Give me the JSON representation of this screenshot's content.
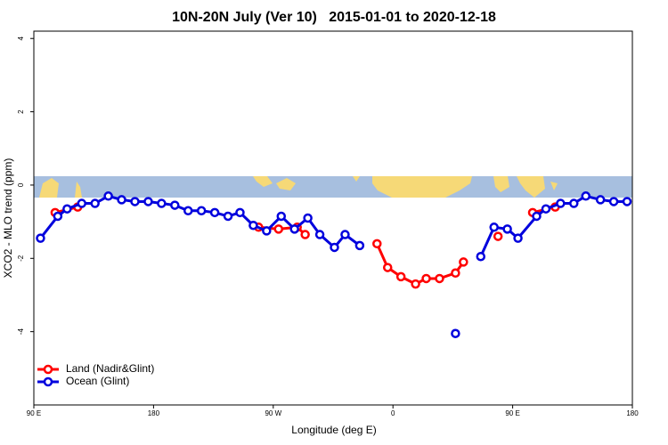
{
  "chart_data": {
    "type": "line",
    "title": "10N-20N July (Ver 10)   2015-01-01 to 2020-12-18",
    "x_label": "Longitude (deg E)",
    "y_label": "XCO2 - MLO trend (ppm)",
    "xlim": [
      90,
      540
    ],
    "xticks": [
      {
        "value": 90,
        "label": "90 E"
      },
      180,
      {
        "value": 270,
        "label": "90 W"
      },
      {
        "value": 360,
        "label": "0"
      },
      {
        "value": 450,
        "label": "90 E"
      },
      {
        "value": 540,
        "label": "180"
      }
    ],
    "ylim": [
      -6,
      4.2
    ],
    "yticks": [
      -4,
      -2,
      0,
      2,
      4
    ],
    "legend": "bottomleft",
    "series": [
      {
        "name": "Land (Nadir&Glint)",
        "color": "#ff0000",
        "x": [
          106,
          123,
          null,
          259,
          274,
          288,
          294,
          null,
          348,
          356,
          366,
          377,
          385,
          395,
          407,
          413,
          null,
          439,
          null,
          465,
          482
        ],
        "values": [
          -0.75,
          -0.6,
          null,
          -1.15,
          -1.2,
          -1.15,
          -1.35,
          null,
          -1.6,
          -2.25,
          -2.5,
          -2.7,
          -2.55,
          -2.55,
          -2.4,
          -2.1,
          null,
          -1.4,
          null,
          -0.75,
          -0.6
        ]
      },
      {
        "name": "Ocean (Glint)",
        "color": "#0000dd",
        "x": [
          95,
          108,
          115,
          126,
          136,
          146,
          156,
          166,
          176,
          186,
          196,
          206,
          216,
          226,
          236,
          245,
          255,
          265,
          276,
          286,
          296,
          305,
          316,
          324,
          335,
          null,
          407,
          null,
          426,
          436,
          446,
          454,
          468,
          475,
          486,
          496,
          505,
          516,
          526,
          536
        ],
        "values": [
          -1.45,
          -0.85,
          -0.65,
          -0.5,
          -0.5,
          -0.3,
          -0.4,
          -0.45,
          -0.45,
          -0.5,
          -0.55,
          -0.7,
          -0.7,
          -0.75,
          -0.85,
          -0.75,
          -1.1,
          -1.25,
          -0.85,
          -1.2,
          -0.9,
          -1.35,
          -1.7,
          -1.35,
          -1.65,
          null,
          -4.05,
          null,
          -1.95,
          -1.15,
          -1.2,
          -1.45,
          -0.85,
          -0.65,
          -0.5,
          -0.5,
          -0.3,
          -0.4,
          -0.45,
          -0.45
        ]
      }
    ]
  }
}
